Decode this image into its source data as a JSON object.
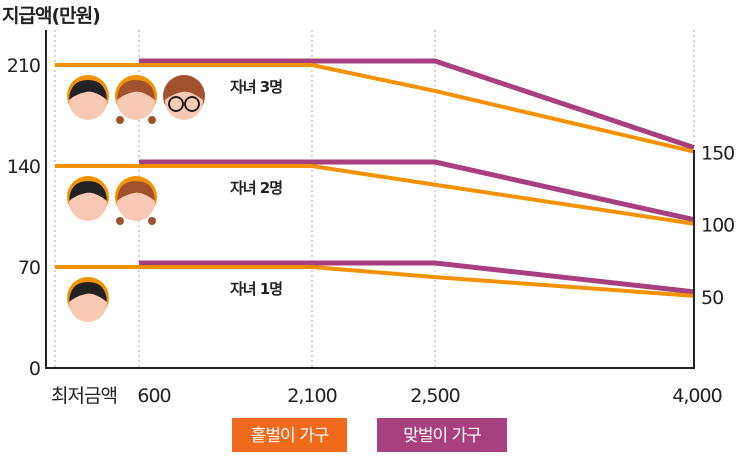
{
  "chart_data": {
    "type": "line",
    "title": "",
    "ylabel": "지급액(만원)",
    "xlabel": "",
    "categories": [
      "최저금액",
      "600",
      "2,100",
      "2,500",
      "4,000"
    ],
    "ylim": [
      0,
      210
    ],
    "yticks": [
      "0",
      "70",
      "140",
      "210"
    ],
    "right_labels": [
      "150",
      "100",
      "50"
    ],
    "right_label_values": [
      150,
      100,
      50
    ],
    "grid": "vertical dotted",
    "legend_placement": "bottom",
    "colors": {
      "single": "#F39200",
      "dual": "#A8407F",
      "legend_single": "#F06A1E",
      "legend_dual": "#A8407F"
    },
    "groups": [
      {
        "label": "자녀 3명",
        "children_icons": [
          "boy-face-icon",
          "girl-face-icon",
          "glasses-face-icon"
        ],
        "single": [
          210,
          210,
          210,
          192,
          150
        ],
        "dual": [
          null,
          210,
          210,
          210,
          150
        ]
      },
      {
        "label": "자녀 2명",
        "children_icons": [
          "boy-face-icon",
          "girl-face-icon"
        ],
        "single": [
          140,
          140,
          140,
          127,
          100
        ],
        "dual": [
          null,
          140,
          140,
          140,
          100
        ]
      },
      {
        "label": "자녀 1명",
        "children_icons": [
          "boy-face-icon"
        ],
        "single": [
          70,
          70,
          70,
          63,
          50
        ],
        "dual": [
          null,
          70,
          70,
          70,
          50
        ]
      }
    ],
    "series": [
      {
        "name": "홑벌이 가구"
      },
      {
        "name": "맞벌이 가구"
      }
    ]
  }
}
